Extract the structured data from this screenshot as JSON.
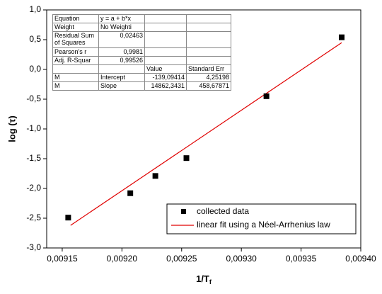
{
  "chart_data": {
    "type": "scatter-fit",
    "x_label": "1/T",
    "x_label_subscript": "f",
    "y_label": "log (τ)",
    "xlim": [
      0.009137,
      0.0094
    ],
    "ylim": [
      -3.0,
      1.0
    ],
    "xticks": [
      {
        "value": 0.00915,
        "label": "0,00915"
      },
      {
        "value": 0.0092,
        "label": "0,00920"
      },
      {
        "value": 0.00925,
        "label": "0,00925"
      },
      {
        "value": 0.0093,
        "label": "0,00930"
      },
      {
        "value": 0.00935,
        "label": "0,00935"
      },
      {
        "value": 0.0094,
        "label": "0,00940"
      }
    ],
    "yticks": [
      {
        "value": -3.0,
        "label": "-3,0"
      },
      {
        "value": -2.5,
        "label": "-2,5"
      },
      {
        "value": -2.0,
        "label": "-2,0"
      },
      {
        "value": -1.5,
        "label": "-1,5"
      },
      {
        "value": -1.0,
        "label": "-1,0"
      },
      {
        "value": -0.5,
        "label": "-0,5"
      },
      {
        "value": 0.0,
        "label": "0,0"
      },
      {
        "value": 0.5,
        "label": "0,5"
      },
      {
        "value": 1.0,
        "label": "1,0"
      }
    ],
    "series": [
      {
        "name": "collected data",
        "color": "#000000",
        "x": [
          0.009155,
          0.009207,
          0.009228,
          0.009254,
          0.009321,
          0.009384
        ],
        "values": [
          -2.49,
          -2.08,
          -1.79,
          -1.49,
          -0.45,
          0.54
        ]
      },
      {
        "name": "linear fit using a Néel-Arrhenius law",
        "color": "#e00000",
        "x": [
          0.009157,
          0.009384
        ],
        "values": [
          -2.62,
          0.45
        ]
      }
    ],
    "legend": "bottom-right"
  },
  "fit_table": {
    "rows": [
      [
        "Equation",
        "y = a + b*x",
        null,
        null
      ],
      [
        "Weight",
        "No Weighti",
        null,
        null
      ],
      [
        "Residual Sum of Squares",
        "0,02463",
        null,
        null
      ],
      [
        "Pearson's r",
        "0,9981",
        null,
        null
      ],
      [
        "Adj. R-Squar",
        "0,99526",
        null,
        null
      ],
      [
        null,
        null,
        "Value",
        "Standard Err"
      ],
      [
        "M",
        "Intercept",
        "-139,09414",
        "4,25198"
      ],
      [
        "M",
        "Slope",
        "14862,3431",
        "458,67871"
      ]
    ]
  }
}
